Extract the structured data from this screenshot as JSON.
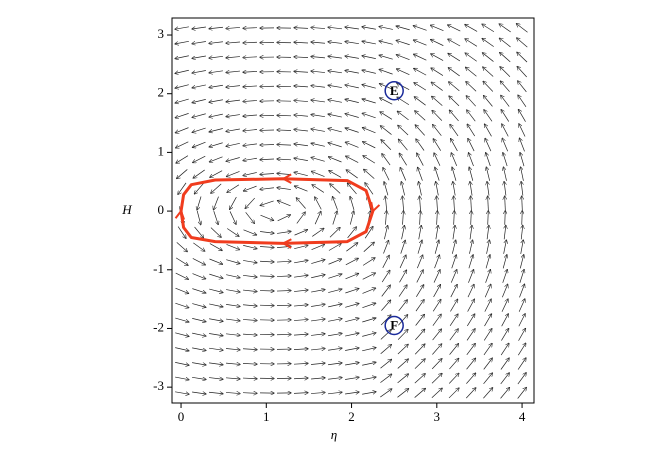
{
  "chart_data": {
    "type": "phase",
    "xlabel": "η",
    "ylabel": "H",
    "xlim": [
      -0.106,
      4.14
    ],
    "ylim": [
      -3.27,
      3.29
    ],
    "xticks": [
      0,
      1,
      2,
      3,
      4
    ],
    "yticks": [
      -3,
      -2,
      -1,
      0,
      1,
      2,
      3
    ],
    "series": [
      {
        "color": "#f03c1e",
        "x": [
          0,
          0.03,
          0.12,
          0.4,
          1.2,
          1.95,
          2.17,
          2.25,
          2.17,
          1.95,
          1.2,
          0.4,
          0.12,
          0.03,
          0
        ],
        "values": [
          0,
          0.28,
          0.45,
          0.53,
          0.55,
          0.52,
          0.35,
          0,
          -0.35,
          -0.52,
          -0.55,
          -0.52,
          -0.45,
          -0.28,
          0
        ]
      }
    ],
    "annotations": [
      {
        "text": "E",
        "x": 2.5,
        "y": 2.05,
        "color": "#1a2a9a"
      },
      {
        "text": "F",
        "x": 2.5,
        "y": -1.95,
        "color": "#1a2a9a"
      }
    ]
  }
}
